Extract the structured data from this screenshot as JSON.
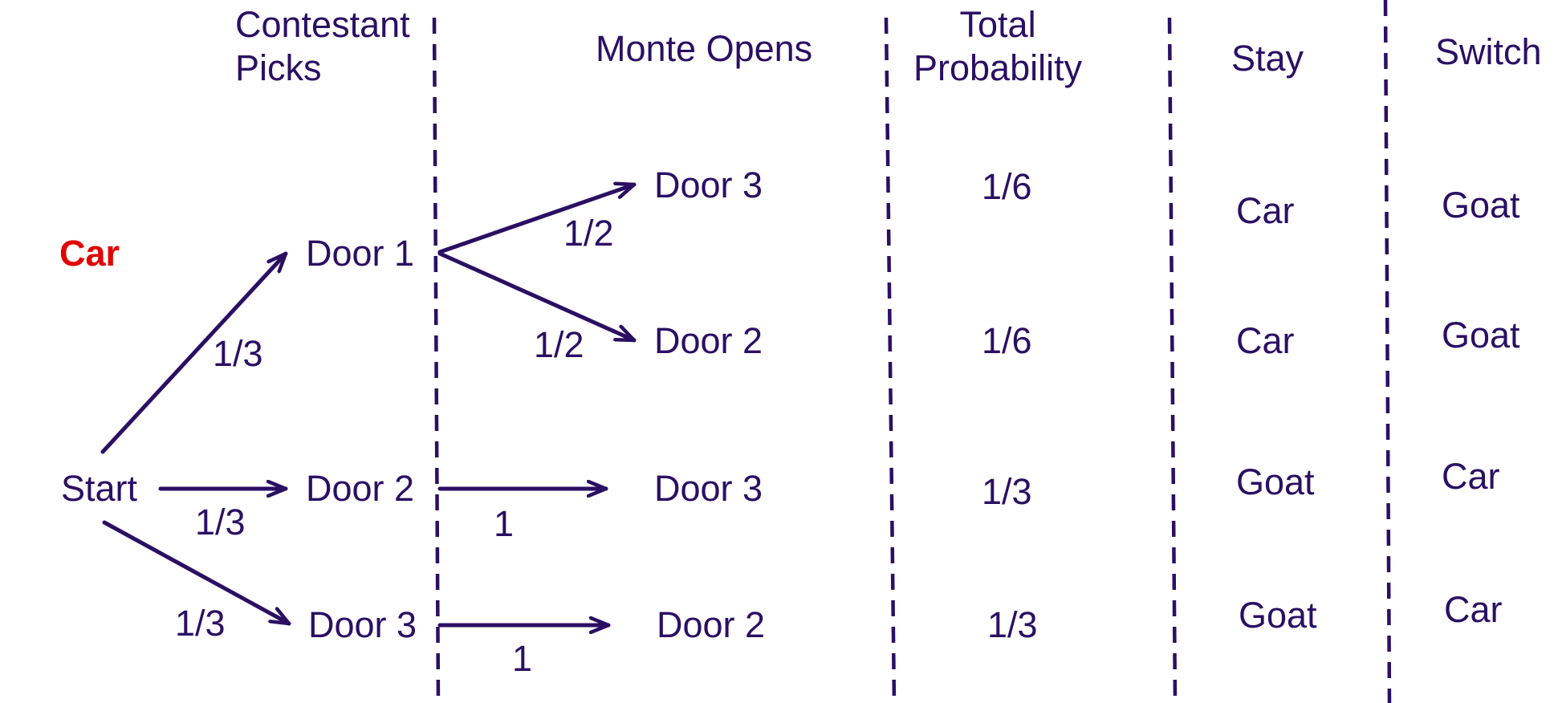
{
  "colors": {
    "ink": "#2b0f63",
    "car": "#e00000",
    "background": "#ffffff"
  },
  "headers": {
    "contestant_picks": "Contestant\nPicks",
    "monte_opens": "Monte Opens",
    "total_probability": "Total\nProbability",
    "stay": "Stay",
    "switch": "Switch"
  },
  "labels": {
    "car": "Car",
    "start": "Start"
  },
  "picks": [
    "Door 1",
    "Door 2",
    "Door 3"
  ],
  "pick_probs": [
    "1/3",
    "1/3",
    "1/3"
  ],
  "opens": [
    "Door 3",
    "Door 2",
    "Door 3",
    "Door 2"
  ],
  "open_probs": [
    "1/2",
    "1/2",
    "1",
    "1"
  ],
  "total_probability": [
    "1/6",
    "1/6",
    "1/3",
    "1/3"
  ],
  "stay": [
    "Car",
    "Car",
    "Goat",
    "Goat"
  ],
  "switch": [
    "Goat",
    "Goat",
    "Car",
    "Car"
  ]
}
